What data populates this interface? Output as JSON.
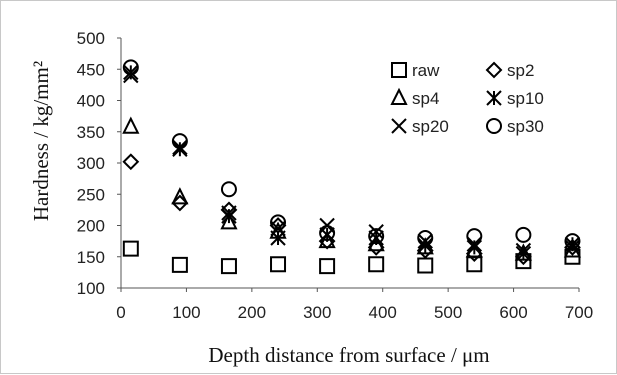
{
  "chart_data": {
    "type": "scatter",
    "title": "",
    "xlabel": "Depth distance from surface / μm",
    "ylabel": "Hardness / kg/mm²",
    "xlim": [
      0,
      700
    ],
    "ylim": [
      100,
      500
    ],
    "xticks": [
      0,
      100,
      200,
      300,
      400,
      500,
      600,
      700
    ],
    "yticks": [
      100,
      150,
      200,
      250,
      300,
      350,
      400,
      450,
      500
    ],
    "grid": false,
    "legend_position": "top-right",
    "series": [
      {
        "name": "raw",
        "marker": "square",
        "x": [
          15,
          90,
          165,
          240,
          315,
          390,
          465,
          540,
          615,
          690
        ],
        "y": [
          163,
          137,
          135,
          138,
          135,
          138,
          136,
          138,
          143,
          150
        ]
      },
      {
        "name": "sp2",
        "marker": "diamond",
        "x": [
          15,
          90,
          165,
          240,
          315,
          390,
          465,
          540,
          615,
          690
        ],
        "y": [
          302,
          236,
          225,
          200,
          175,
          165,
          160,
          155,
          150,
          165
        ]
      },
      {
        "name": "sp4",
        "marker": "triangle",
        "x": [
          15,
          90,
          165,
          240,
          315,
          390,
          465,
          540,
          615,
          690
        ],
        "y": [
          358,
          245,
          205,
          190,
          175,
          170,
          165,
          160,
          155,
          160
        ]
      },
      {
        "name": "sp10",
        "marker": "asterisk",
        "x": [
          15,
          90,
          165,
          240,
          315,
          390,
          465,
          540,
          615,
          690
        ],
        "y": [
          445,
          322,
          215,
          180,
          185,
          180,
          168,
          165,
          155,
          170
        ]
      },
      {
        "name": "sp20",
        "marker": "x",
        "x": [
          15,
          90,
          165,
          240,
          315,
          390,
          465,
          540,
          615,
          690
        ],
        "y": [
          440,
          325,
          220,
          195,
          200,
          190,
          175,
          170,
          160,
          165
        ]
      },
      {
        "name": "sp30",
        "marker": "circle",
        "x": [
          15,
          90,
          165,
          240,
          315,
          390,
          465,
          540,
          615,
          690
        ],
        "y": [
          453,
          335,
          258,
          205,
          188,
          183,
          180,
          183,
          185,
          175
        ]
      }
    ]
  }
}
